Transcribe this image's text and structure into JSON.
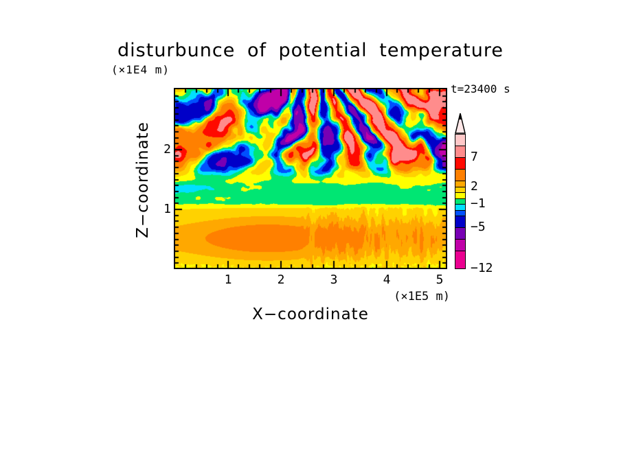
{
  "chart_data": {
    "type": "filled-contour",
    "title": "disturbunce of potential temperature",
    "time_label": "t=23400 s",
    "xlabel": "X−coordinate",
    "x_unit": "(×1E5 m)",
    "ylabel": "Z−coordinate",
    "y_unit": "(×1E4 m)",
    "xlim": [
      0,
      5.12
    ],
    "ylim": [
      0,
      3.0
    ],
    "x_ticks": [
      1,
      2,
      3,
      4,
      5
    ],
    "y_ticks": [
      1,
      2
    ],
    "x_minor_step": 0.2,
    "y_minor_step": 0.1,
    "grid": false,
    "legend_position": "right-colorbar",
    "levels": [
      -12,
      -9,
      -7,
      -5,
      -3,
      -2,
      -1,
      0,
      1,
      2,
      3,
      5,
      7,
      9,
      11
    ],
    "palette": [
      "#EA0090",
      "#C000A8",
      "#7800B4",
      "#0000C8",
      "#0050FF",
      "#00E0FF",
      "#00E673",
      "#FFFF00",
      "#FFD200",
      "#FFA800",
      "#FF8000",
      "#FF0A00",
      "#FF8C8C",
      "#FFC8C8"
    ],
    "colorbar_labels": [
      "7",
      "2",
      "−1",
      "−5",
      "−12"
    ],
    "colorbar_label_values": [
      7,
      2,
      -1,
      -5,
      -12
    ],
    "field_regions": {
      "upper": "large-amplitude turbulent waves, green background with red/orange and blue/purple cells, fan-tilted streaks",
      "middle_band": "green band with cyan patches near z=1.1-1.4",
      "lower": "stratified yellow layer with nested orange core at x=1.8 z=0.5, fine vertical streaks right of x=2.4, green speckles at ground"
    },
    "colors": {
      "background": "#FFFFFF",
      "frame": "#000000",
      "text": "#000000",
      "arrow_fill": "#FFE8E8"
    }
  }
}
